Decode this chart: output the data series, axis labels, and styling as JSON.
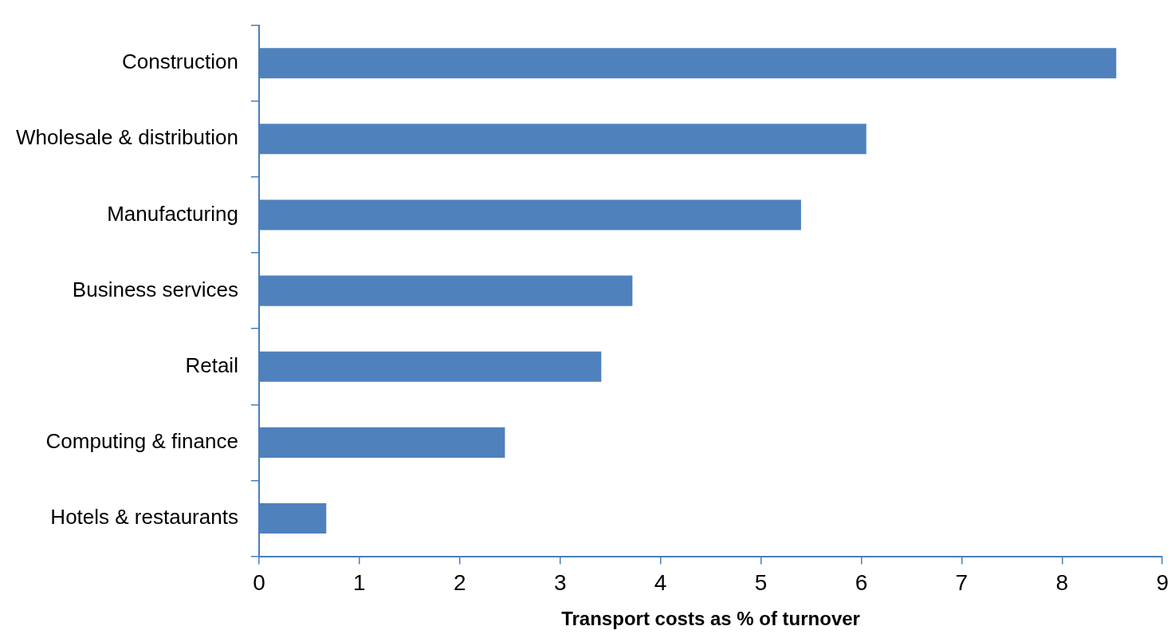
{
  "chart_data": {
    "type": "bar",
    "orientation": "horizontal",
    "xlabel": "Transport costs as % of turnover",
    "categories": [
      "Construction",
      "Wholesale & distribution",
      "Manufacturing",
      "Business services",
      "Retail",
      "Computing & finance",
      "Hotels & restaurants"
    ],
    "values": [
      8.54,
      6.05,
      5.4,
      3.72,
      3.41,
      2.45,
      0.67
    ],
    "color": "#4f81bd",
    "xlim": [
      0,
      9
    ],
    "xticks": [
      0,
      1,
      2,
      3,
      4,
      5,
      6,
      7,
      8,
      9
    ],
    "legend": false
  }
}
